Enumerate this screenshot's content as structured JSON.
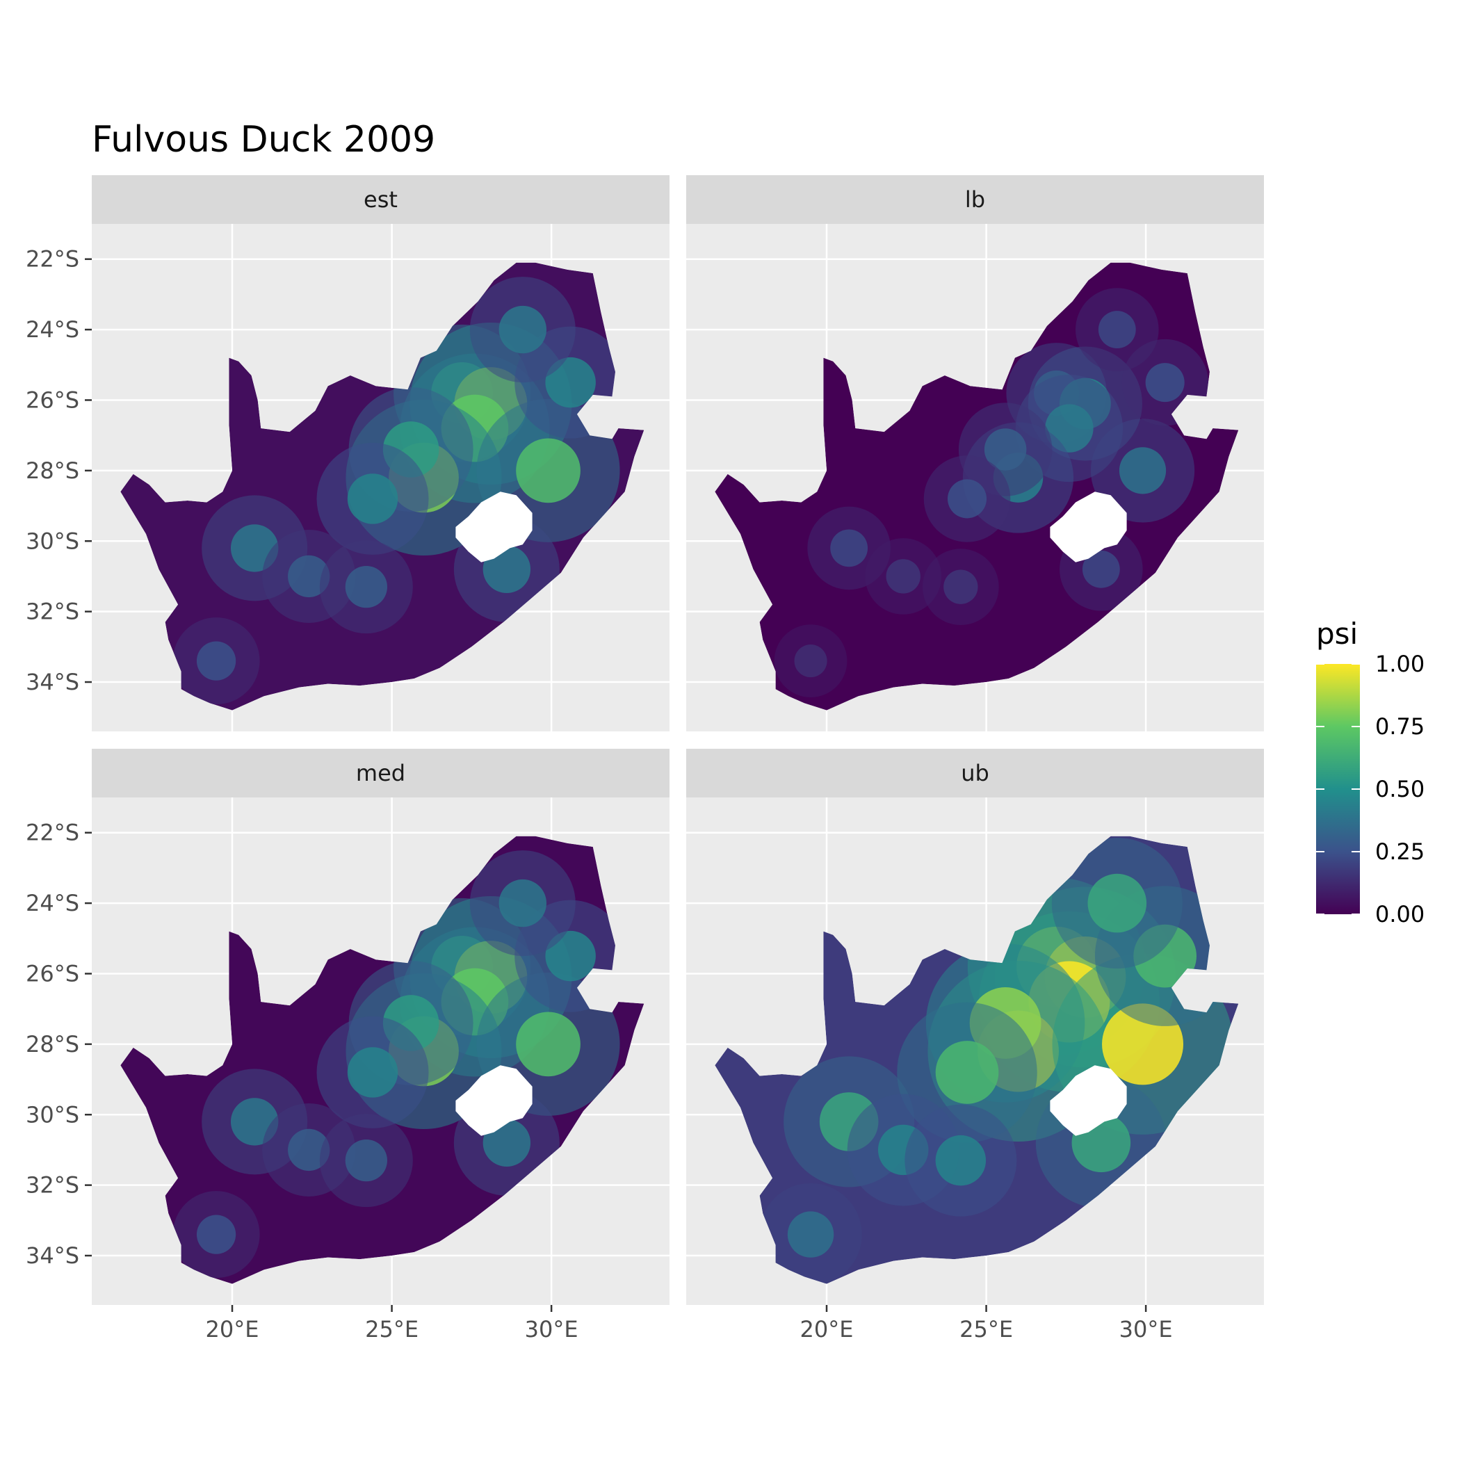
{
  "title": "Fulvous Duck 2009",
  "panels": [
    {
      "key": "est",
      "label": "est"
    },
    {
      "key": "lb",
      "label": "lb"
    },
    {
      "key": "med",
      "label": "med"
    },
    {
      "key": "ub",
      "label": "ub"
    }
  ],
  "axes": {
    "x_ticks": [
      "20°E",
      "25°E",
      "30°E"
    ],
    "y_ticks": [
      "22°S",
      "24°S",
      "26°S",
      "28°S",
      "30°S",
      "32°S",
      "34°S"
    ],
    "x_tick_values": [
      20,
      25,
      30
    ],
    "y_tick_values": [
      -22,
      -24,
      -26,
      -28,
      -30,
      -32,
      -34
    ],
    "x_range": [
      15.6,
      33.7
    ],
    "y_range": [
      -35.4,
      -21.0
    ]
  },
  "legend": {
    "title": "psi",
    "labels": [
      "1.00",
      "0.75",
      "0.50",
      "0.25",
      "0.00"
    ],
    "values": [
      1.0,
      0.75,
      0.5,
      0.25,
      0.0
    ],
    "position": "right",
    "palette": [
      "#440154",
      "#3b528b",
      "#21908c",
      "#5dc863",
      "#fde725"
    ]
  },
  "colors": {
    "panel_background": "#ebebeb",
    "strip_background": "#d9d9d9",
    "grid": "#ffffff",
    "hotspot": "#fde725"
  },
  "map_data": {
    "outline_lonlat": [
      [
        28.9,
        -22.1
      ],
      [
        29.5,
        -22.1
      ],
      [
        30.5,
        -22.3
      ],
      [
        31.3,
        -22.4
      ],
      [
        31.55,
        -23.5
      ],
      [
        31.8,
        -24.5
      ],
      [
        32.0,
        -25.2
      ],
      [
        31.9,
        -25.9
      ],
      [
        31.3,
        -25.85
      ],
      [
        30.8,
        -26.4
      ],
      [
        31.2,
        -27.0
      ],
      [
        31.9,
        -27.1
      ],
      [
        32.1,
        -26.8
      ],
      [
        32.9,
        -26.85
      ],
      [
        32.6,
        -27.6
      ],
      [
        32.3,
        -28.6
      ],
      [
        31.6,
        -29.3
      ],
      [
        31.0,
        -29.9
      ],
      [
        30.3,
        -30.9
      ],
      [
        29.4,
        -31.6
      ],
      [
        28.5,
        -32.3
      ],
      [
        27.5,
        -33.0
      ],
      [
        26.5,
        -33.6
      ],
      [
        25.7,
        -33.9
      ],
      [
        25.0,
        -34.0
      ],
      [
        24.0,
        -34.1
      ],
      [
        23.0,
        -34.05
      ],
      [
        22.1,
        -34.15
      ],
      [
        21.0,
        -34.4
      ],
      [
        20.0,
        -34.8
      ],
      [
        19.3,
        -34.6
      ],
      [
        18.8,
        -34.4
      ],
      [
        18.4,
        -34.2
      ],
      [
        18.4,
        -33.7
      ],
      [
        18.0,
        -32.8
      ],
      [
        17.9,
        -32.3
      ],
      [
        18.3,
        -31.8
      ],
      [
        17.7,
        -30.8
      ],
      [
        17.3,
        -29.8
      ],
      [
        16.9,
        -29.2
      ],
      [
        16.5,
        -28.6
      ],
      [
        16.9,
        -28.1
      ],
      [
        17.4,
        -28.4
      ],
      [
        17.9,
        -28.9
      ],
      [
        18.6,
        -28.85
      ],
      [
        19.2,
        -28.9
      ],
      [
        19.7,
        -28.6
      ],
      [
        20.0,
        -28.0
      ],
      [
        19.9,
        -26.7
      ],
      [
        19.9,
        -24.8
      ],
      [
        20.2,
        -24.9
      ],
      [
        20.6,
        -25.3
      ],
      [
        20.8,
        -26.0
      ],
      [
        20.9,
        -26.8
      ],
      [
        21.8,
        -26.9
      ],
      [
        22.6,
        -26.3
      ],
      [
        23.0,
        -25.6
      ],
      [
        23.7,
        -25.3
      ],
      [
        24.5,
        -25.6
      ],
      [
        25.5,
        -25.7
      ],
      [
        25.9,
        -24.8
      ],
      [
        26.4,
        -24.6
      ],
      [
        26.9,
        -23.9
      ],
      [
        27.7,
        -23.2
      ],
      [
        28.2,
        -22.6
      ]
    ],
    "lesotho_lonlat": [
      [
        27.0,
        -29.6
      ],
      [
        27.4,
        -29.3
      ],
      [
        27.8,
        -28.9
      ],
      [
        28.4,
        -28.6
      ],
      [
        28.9,
        -28.7
      ],
      [
        29.4,
        -29.2
      ],
      [
        29.4,
        -29.7
      ],
      [
        29.1,
        -30.1
      ],
      [
        28.7,
        -30.2
      ],
      [
        28.2,
        -30.5
      ],
      [
        27.8,
        -30.6
      ],
      [
        27.4,
        -30.3
      ],
      [
        27.0,
        -29.9
      ]
    ],
    "hotspots": [
      {
        "lon": 27.2,
        "lat": -25.8,
        "psi": 0.65
      },
      {
        "lon": 28.1,
        "lat": -26.1,
        "psi": 0.85
      },
      {
        "lon": 27.6,
        "lat": -26.8,
        "psi": 0.75
      },
      {
        "lon": 26.0,
        "lat": -28.2,
        "psi": 0.8
      },
      {
        "lon": 25.6,
        "lat": -27.4,
        "psi": 0.55
      },
      {
        "lon": 29.9,
        "lat": -28.0,
        "psi": 0.7
      },
      {
        "lon": 30.6,
        "lat": -25.5,
        "psi": 0.45
      },
      {
        "lon": 29.1,
        "lat": -24.0,
        "psi": 0.4
      },
      {
        "lon": 24.4,
        "lat": -28.8,
        "psi": 0.45
      },
      {
        "lon": 20.7,
        "lat": -30.2,
        "psi": 0.4
      },
      {
        "lon": 22.4,
        "lat": -31.0,
        "psi": 0.3
      },
      {
        "lon": 28.6,
        "lat": -30.8,
        "psi": 0.4
      },
      {
        "lon": 24.2,
        "lat": -31.3,
        "psi": 0.3
      },
      {
        "lon": 19.5,
        "lat": -33.4,
        "psi": 0.25
      }
    ],
    "panel_scale": {
      "est": 1.0,
      "lb": 0.55,
      "med": 1.0,
      "ub": 1.5
    },
    "panel_background_psi": {
      "est": 0.04,
      "lb": 0.0,
      "med": 0.02,
      "ub": 0.18
    }
  }
}
